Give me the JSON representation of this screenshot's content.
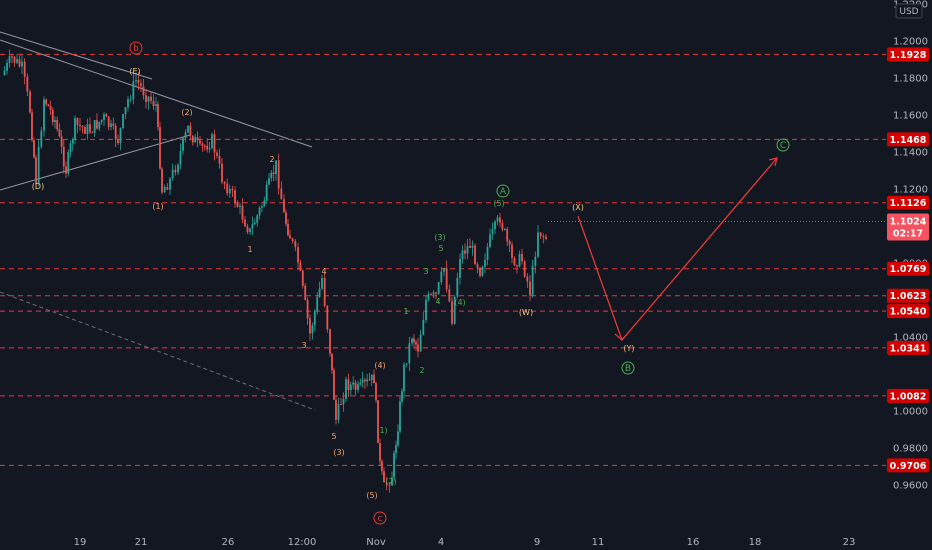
{
  "chart_data": {
    "type": "candlestick",
    "currency": "USD",
    "y_axis_ticks": [
      "1.2200",
      "1.2000",
      "1.1800",
      "1.1600",
      "1.1400",
      "1.1200",
      "1.0800",
      "1.0400",
      "1.0000",
      "0.9800",
      "0.9600"
    ],
    "x_axis_ticks": [
      "19",
      "21",
      "26",
      "12:00",
      "Nov",
      "4",
      "9",
      "11",
      "16",
      "18",
      "23"
    ],
    "ylim": [
      0.95,
      1.23
    ],
    "price_levels": [
      "1.1928",
      "1.1468",
      "1.1126",
      "1.0769",
      "1.0623",
      "1.0540",
      "1.0341",
      "1.0082",
      "0.9706"
    ],
    "current_price": "1.1024",
    "countdown": "02:17",
    "wave_labels": [
      {
        "text": "b",
        "color": "#e53935",
        "circled": true
      },
      {
        "text": "(E)",
        "color": "#f5c882"
      },
      {
        "text": "(D)",
        "color": "#f5c882"
      },
      {
        "text": "(2)",
        "color": "#f5a26d"
      },
      {
        "text": "(1)",
        "color": "#f5a26d"
      },
      {
        "text": "2",
        "color": "#f5a26d"
      },
      {
        "text": "1",
        "color": "#f5a26d"
      },
      {
        "text": "4",
        "color": "#f5a26d"
      },
      {
        "text": "3",
        "color": "#f5a26d"
      },
      {
        "text": "5",
        "color": "#f5a26d"
      },
      {
        "text": "(4)",
        "color": "#f5a26d"
      },
      {
        "text": "(3)",
        "color": "#f5a26d"
      },
      {
        "text": "(5)",
        "color": "#f5a26d"
      },
      {
        "text": "c",
        "color": "#e53935",
        "circled": true
      },
      {
        "text": "(1)",
        "color": "#4caf50"
      },
      {
        "text": "(2)",
        "color": "#4caf50"
      },
      {
        "text": "1",
        "color": "#4caf50"
      },
      {
        "text": "2",
        "color": "#4caf50"
      },
      {
        "text": "3",
        "color": "#4caf50"
      },
      {
        "text": "4",
        "color": "#4caf50"
      },
      {
        "text": "(3)",
        "color": "#4caf50"
      },
      {
        "text": "5",
        "color": "#4caf50"
      },
      {
        "text": "(4)",
        "color": "#4caf50"
      },
      {
        "text": "(5)",
        "color": "#4caf50"
      },
      {
        "text": "A",
        "color": "#4caf50",
        "circled": true
      },
      {
        "text": "(W)",
        "color": "#f5c882"
      },
      {
        "text": "(X)",
        "color": "#f5c882"
      },
      {
        "text": "(Y)",
        "color": "#f5c882"
      },
      {
        "text": "B",
        "color": "#4caf50",
        "circled": true
      },
      {
        "text": "C",
        "color": "#4caf50",
        "circled": true
      }
    ]
  },
  "colors": {
    "background": "#131722",
    "up": "#26a69a",
    "down": "#ef5350",
    "level_line": "#e53935",
    "badge": "#d50000",
    "projection": "#e53935"
  }
}
